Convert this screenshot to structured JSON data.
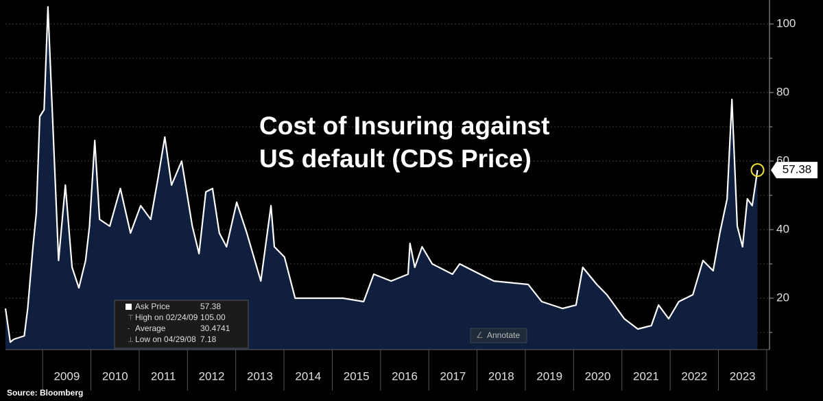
{
  "chart_data": {
    "type": "line",
    "title_lines": [
      "Cost of Insuring against",
      "US default (CDS Price)"
    ],
    "source": "Source: Bloomberg",
    "button": "Annotate",
    "x": [
      2008.23,
      2008.33,
      2008.4,
      2008.62,
      2008.69,
      2008.8,
      2008.87,
      2008.94,
      2009.03,
      2009.11,
      2009.18,
      2009.33,
      2009.47,
      2009.61,
      2009.75,
      2009.89,
      2009.97,
      2010.08,
      2010.18,
      2010.39,
      2010.61,
      2010.82,
      2011.03,
      2011.24,
      2011.39,
      2011.53,
      2011.67,
      2011.88,
      2012.1,
      2012.24,
      2012.38,
      2012.52,
      2012.66,
      2012.81,
      2013.02,
      2013.23,
      2013.52,
      2013.73,
      2013.8,
      2014.01,
      2014.23,
      2014.65,
      2015.22,
      2015.65,
      2015.86,
      2016.22,
      2016.57,
      2016.61,
      2016.71,
      2016.86,
      2017.07,
      2017.49,
      2017.64,
      2018.06,
      2018.35,
      2019.06,
      2019.34,
      2019.77,
      2020.05,
      2020.19,
      2020.48,
      2020.69,
      2021.05,
      2021.33,
      2021.61,
      2021.76,
      2021.97,
      2022.18,
      2022.47,
      2022.68,
      2022.89,
      2023.03,
      2023.18,
      2023.28,
      2023.39,
      2023.5,
      2023.6,
      2023.7,
      2023.81
    ],
    "values": [
      17,
      7.18,
      8,
      9,
      17,
      35,
      45,
      73,
      75,
      105,
      81,
      31,
      53,
      29,
      23,
      31,
      41,
      66,
      43,
      41,
      52,
      39,
      47,
      43,
      55,
      67,
      53,
      60,
      41,
      33,
      51,
      52,
      39,
      35,
      48,
      39,
      25,
      47,
      35,
      32,
      20,
      20,
      20,
      19,
      27,
      25,
      27,
      36,
      29,
      35,
      30,
      27,
      30,
      27,
      25,
      24,
      19,
      17,
      18,
      29,
      24,
      21,
      14,
      11,
      12,
      18,
      14,
      19,
      21,
      31,
      28,
      39,
      49,
      78,
      41,
      35,
      49,
      47,
      57.38
    ],
    "line_color": "#ffffff",
    "area_color": "#0f1f3d",
    "xlim": [
      2008.23,
      2024.03
    ],
    "ylim": [
      5,
      107
    ],
    "yticks": [
      20,
      40,
      60,
      80,
      100
    ],
    "ygrid_minor": [
      10,
      30,
      50,
      70,
      90
    ],
    "year_bounds": [
      2009,
      2010,
      2011,
      2012,
      2013,
      2014,
      2015,
      2016,
      2017,
      2018,
      2019,
      2020,
      2021,
      2022,
      2023,
      2024
    ],
    "xticks": [
      {
        "value": 2009.5,
        "label": "2009"
      },
      {
        "value": 2010.5,
        "label": "2010"
      },
      {
        "value": 2011.5,
        "label": "2011"
      },
      {
        "value": 2012.5,
        "label": "2012"
      },
      {
        "value": 2013.5,
        "label": "2013"
      },
      {
        "value": 2014.5,
        "label": "2014"
      },
      {
        "value": 2015.5,
        "label": "2015"
      },
      {
        "value": 2016.5,
        "label": "2016"
      },
      {
        "value": 2017.5,
        "label": "2017"
      },
      {
        "value": 2018.5,
        "label": "2018"
      },
      {
        "value": 2019.5,
        "label": "2019"
      },
      {
        "value": 2020.5,
        "label": "2020"
      },
      {
        "value": 2021.5,
        "label": "2021"
      },
      {
        "value": 2022.5,
        "label": "2022"
      },
      {
        "value": 2023.5,
        "label": "2023"
      }
    ],
    "stats": [
      {
        "label": "Ask Price",
        "value": "57.38"
      },
      {
        "label": "High on 02/24/09",
        "value": "105.00"
      },
      {
        "label": "Average",
        "value": "30.4741"
      },
      {
        "label": "Low on 04/29/08",
        "value": "7.18"
      }
    ],
    "highlight_color": "#f2e233"
  }
}
